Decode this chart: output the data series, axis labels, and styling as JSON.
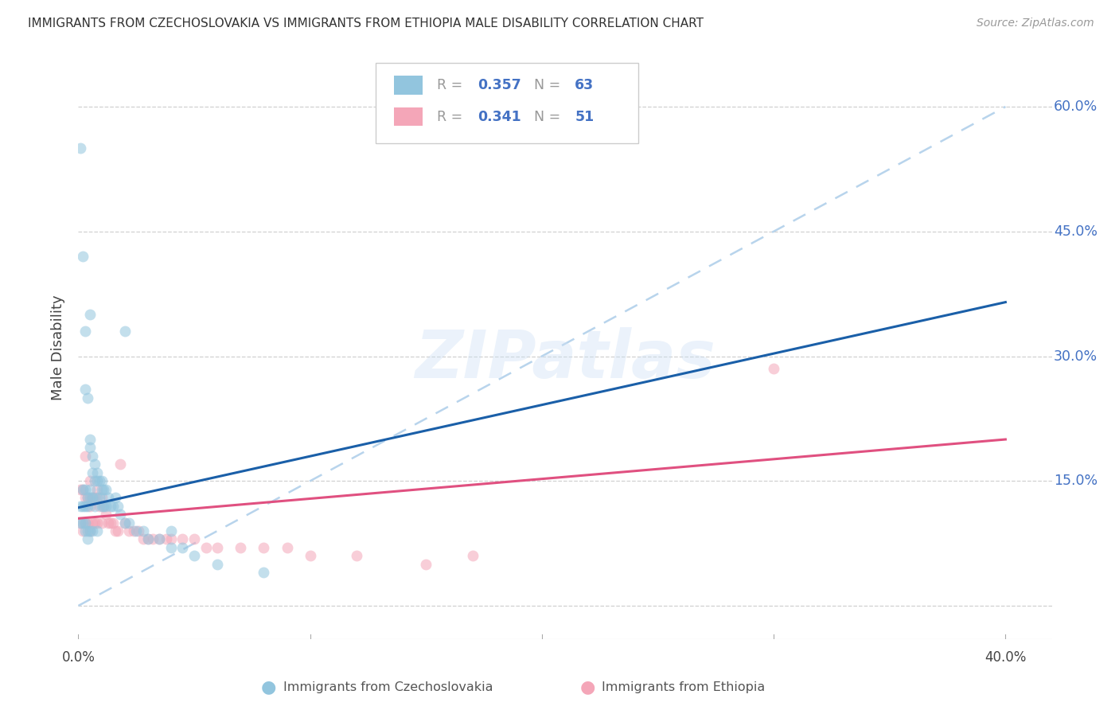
{
  "title": "IMMIGRANTS FROM CZECHOSLOVAKIA VS IMMIGRANTS FROM ETHIOPIA MALE DISABILITY CORRELATION CHART",
  "source": "Source: ZipAtlas.com",
  "ylabel": "Male Disability",
  "xlim": [
    0.0,
    0.42
  ],
  "ylim": [
    -0.04,
    0.66
  ],
  "yticks": [
    0.0,
    0.15,
    0.3,
    0.45,
    0.6
  ],
  "ytick_labels": [
    "",
    "15.0%",
    "30.0%",
    "45.0%",
    "60.0%"
  ],
  "xticks": [
    0.0,
    0.1,
    0.2,
    0.3,
    0.4
  ],
  "background_color": "#ffffff",
  "grid_color": "#d0d0d0",
  "watermark": "ZIPatlas",
  "blue_scatter": "#92c5de",
  "pink_scatter": "#f4a6b8",
  "blue_line": "#1a5fa8",
  "pink_line": "#e05080",
  "dashed_line": "#b8d4ec",
  "right_axis_color": "#4472c4",
  "legend_text_color": "#999999",
  "legend_val_color": "#4472c4",
  "series1_label": "Immigrants from Czechoslovakia",
  "series2_label": "Immigrants from Ethiopia",
  "R1": "0.357",
  "N1": "63",
  "R2": "0.341",
  "N2": "51",
  "czecho_x": [
    0.001,
    0.001,
    0.001,
    0.002,
    0.002,
    0.002,
    0.002,
    0.003,
    0.003,
    0.003,
    0.003,
    0.003,
    0.004,
    0.004,
    0.004,
    0.004,
    0.004,
    0.005,
    0.005,
    0.005,
    0.005,
    0.005,
    0.006,
    0.006,
    0.006,
    0.006,
    0.007,
    0.007,
    0.007,
    0.008,
    0.008,
    0.008,
    0.008,
    0.009,
    0.009,
    0.01,
    0.01,
    0.01,
    0.011,
    0.011,
    0.012,
    0.012,
    0.013,
    0.014,
    0.015,
    0.016,
    0.017,
    0.018,
    0.02,
    0.022,
    0.025,
    0.028,
    0.03,
    0.035,
    0.04,
    0.045,
    0.05,
    0.06,
    0.08,
    0.003,
    0.005,
    0.02,
    0.04
  ],
  "czecho_y": [
    0.55,
    0.12,
    0.1,
    0.42,
    0.14,
    0.12,
    0.1,
    0.33,
    0.14,
    0.12,
    0.1,
    0.09,
    0.25,
    0.13,
    0.12,
    0.09,
    0.08,
    0.2,
    0.19,
    0.14,
    0.13,
    0.09,
    0.18,
    0.16,
    0.13,
    0.09,
    0.17,
    0.15,
    0.12,
    0.16,
    0.15,
    0.13,
    0.09,
    0.15,
    0.13,
    0.15,
    0.14,
    0.12,
    0.14,
    0.12,
    0.14,
    0.12,
    0.13,
    0.12,
    0.12,
    0.13,
    0.12,
    0.11,
    0.1,
    0.1,
    0.09,
    0.09,
    0.08,
    0.08,
    0.07,
    0.07,
    0.06,
    0.05,
    0.04,
    0.26,
    0.35,
    0.33,
    0.09
  ],
  "ethiopia_x": [
    0.001,
    0.001,
    0.002,
    0.002,
    0.003,
    0.003,
    0.003,
    0.004,
    0.004,
    0.005,
    0.005,
    0.005,
    0.006,
    0.006,
    0.007,
    0.007,
    0.008,
    0.008,
    0.009,
    0.01,
    0.01,
    0.011,
    0.012,
    0.013,
    0.014,
    0.015,
    0.016,
    0.017,
    0.018,
    0.02,
    0.022,
    0.024,
    0.026,
    0.028,
    0.03,
    0.032,
    0.035,
    0.038,
    0.04,
    0.045,
    0.05,
    0.055,
    0.06,
    0.07,
    0.08,
    0.09,
    0.1,
    0.12,
    0.15,
    0.17,
    0.3
  ],
  "ethiopia_y": [
    0.14,
    0.1,
    0.14,
    0.09,
    0.18,
    0.13,
    0.1,
    0.13,
    0.1,
    0.15,
    0.12,
    0.09,
    0.13,
    0.1,
    0.13,
    0.1,
    0.14,
    0.1,
    0.12,
    0.13,
    0.1,
    0.12,
    0.11,
    0.1,
    0.1,
    0.1,
    0.09,
    0.09,
    0.17,
    0.1,
    0.09,
    0.09,
    0.09,
    0.08,
    0.08,
    0.08,
    0.08,
    0.08,
    0.08,
    0.08,
    0.08,
    0.07,
    0.07,
    0.07,
    0.07,
    0.07,
    0.06,
    0.06,
    0.05,
    0.06,
    0.285
  ],
  "czecho_line_x0": 0.0,
  "czecho_line_y0": 0.118,
  "czecho_line_x1": 0.4,
  "czecho_line_y1": 0.365,
  "ethiopia_line_x0": 0.0,
  "ethiopia_line_y0": 0.105,
  "ethiopia_line_x1": 0.4,
  "ethiopia_line_y1": 0.2
}
